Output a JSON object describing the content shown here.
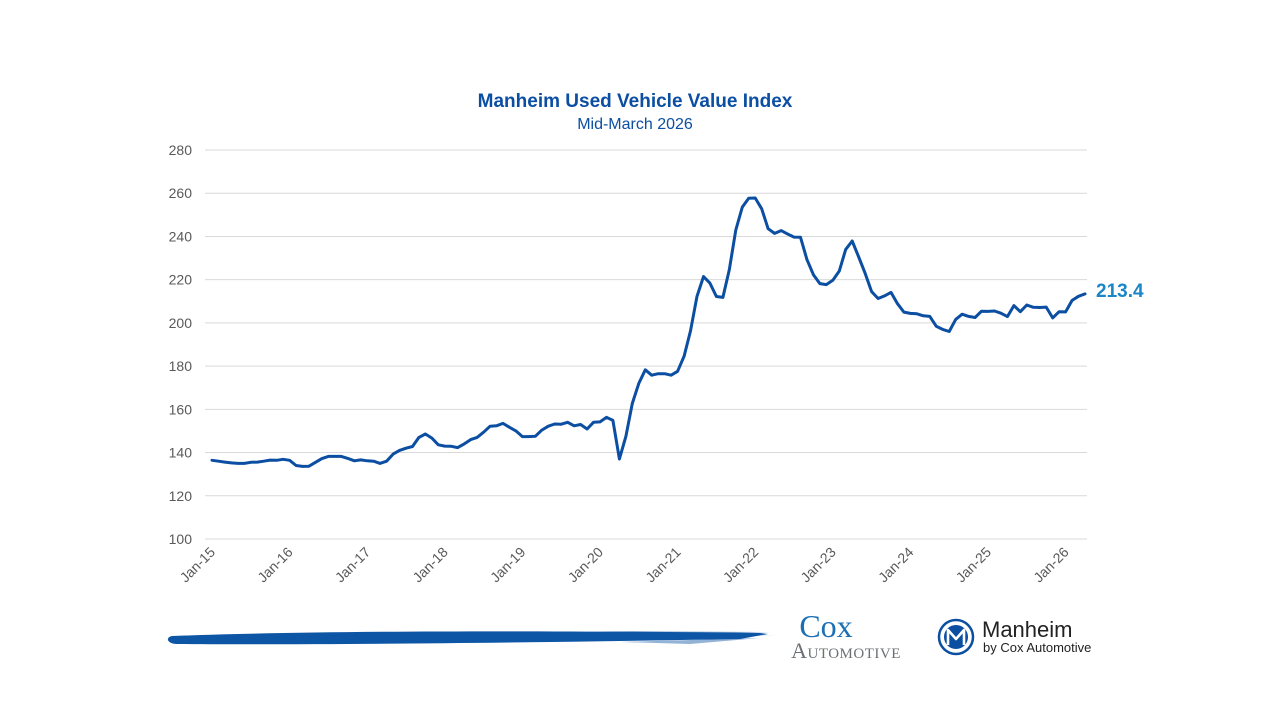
{
  "colors": {
    "line": "#0b4ea2",
    "title": "#0b4ea2",
    "end_label": "#1a86c8",
    "grid": "#d9d9d9",
    "brush": "#0d55a5",
    "cox_top": "#1a6fb5",
    "cox_bottom": "#6b7075",
    "manheim_text": "#222222"
  },
  "chart_data": {
    "type": "line",
    "title": "Manheim Used Vehicle Value Index",
    "subtitle": "Mid-March 2026",
    "xlabel": "",
    "ylabel": "",
    "ylim": [
      100,
      280
    ],
    "yticks": [
      100,
      120,
      140,
      160,
      180,
      200,
      220,
      240,
      260,
      280
    ],
    "xticks": [
      "Jan-15",
      "Jan-16",
      "Jan-17",
      "Jan-18",
      "Jan-19",
      "Jan-20",
      "Jan-21",
      "Jan-22",
      "Jan-23",
      "Jan-24",
      "Jan-25",
      "Jan-26"
    ],
    "x_start": "Jan-15",
    "x_end": "Mar-26",
    "grid": true,
    "legend": "none",
    "end_label": "213.4",
    "series": [
      {
        "values": [
          136.4,
          136.0,
          135.6,
          135.2,
          135.0,
          135.0,
          135.5,
          135.6,
          136.0,
          136.5,
          136.4,
          136.9,
          136.4,
          134.0,
          133.6,
          133.7,
          135.5,
          137.2,
          138.2,
          138.2,
          138.2,
          137.3,
          136.2,
          136.6,
          136.2,
          136.0,
          135.0,
          136.0,
          139.3,
          141.0,
          142.0,
          142.8,
          147.0,
          148.6,
          146.7,
          143.6,
          143.0,
          142.9,
          142.3,
          144.0,
          146.0,
          147.0,
          149.4,
          152.2,
          152.4,
          153.5,
          151.7,
          150.0,
          147.4,
          147.4,
          147.5,
          150.4,
          152.2,
          153.2,
          153.1,
          154.0,
          152.4,
          153.0,
          150.9,
          154.0,
          154.2,
          156.3,
          154.9,
          137.0,
          147.5,
          162.7,
          172.0,
          178.3,
          175.8,
          176.5,
          176.5,
          175.8,
          177.6,
          184.6,
          196.3,
          212.3,
          221.4,
          218.4,
          212.2,
          211.8,
          224.6,
          243.0,
          253.6,
          257.7,
          257.8,
          252.8,
          243.6,
          241.4,
          242.7,
          241.2,
          239.7,
          239.6,
          229.4,
          222.3,
          218.2,
          217.7,
          219.7,
          224.0,
          234.0,
          237.9,
          230.5,
          223.0,
          214.5,
          211.3,
          212.5,
          214.1,
          208.9,
          205.0,
          204.4,
          204.2,
          203.3,
          203.0,
          198.4,
          197.0,
          196.0,
          201.6,
          204.0,
          203.0,
          202.5,
          205.4,
          205.3,
          205.5,
          204.5,
          202.9,
          208.0,
          205.2,
          208.3,
          207.2,
          207.1,
          207.3,
          202.3,
          205.2,
          205.1,
          210.4,
          212.3,
          213.4
        ]
      }
    ]
  },
  "footer": {
    "cox_line1": "Cox",
    "cox_line2": "Automotive",
    "manheim_name": "Manheim",
    "manheim_tagline": "by Cox Automotive",
    "manheim_icon": "manheim-m-badge-icon"
  }
}
